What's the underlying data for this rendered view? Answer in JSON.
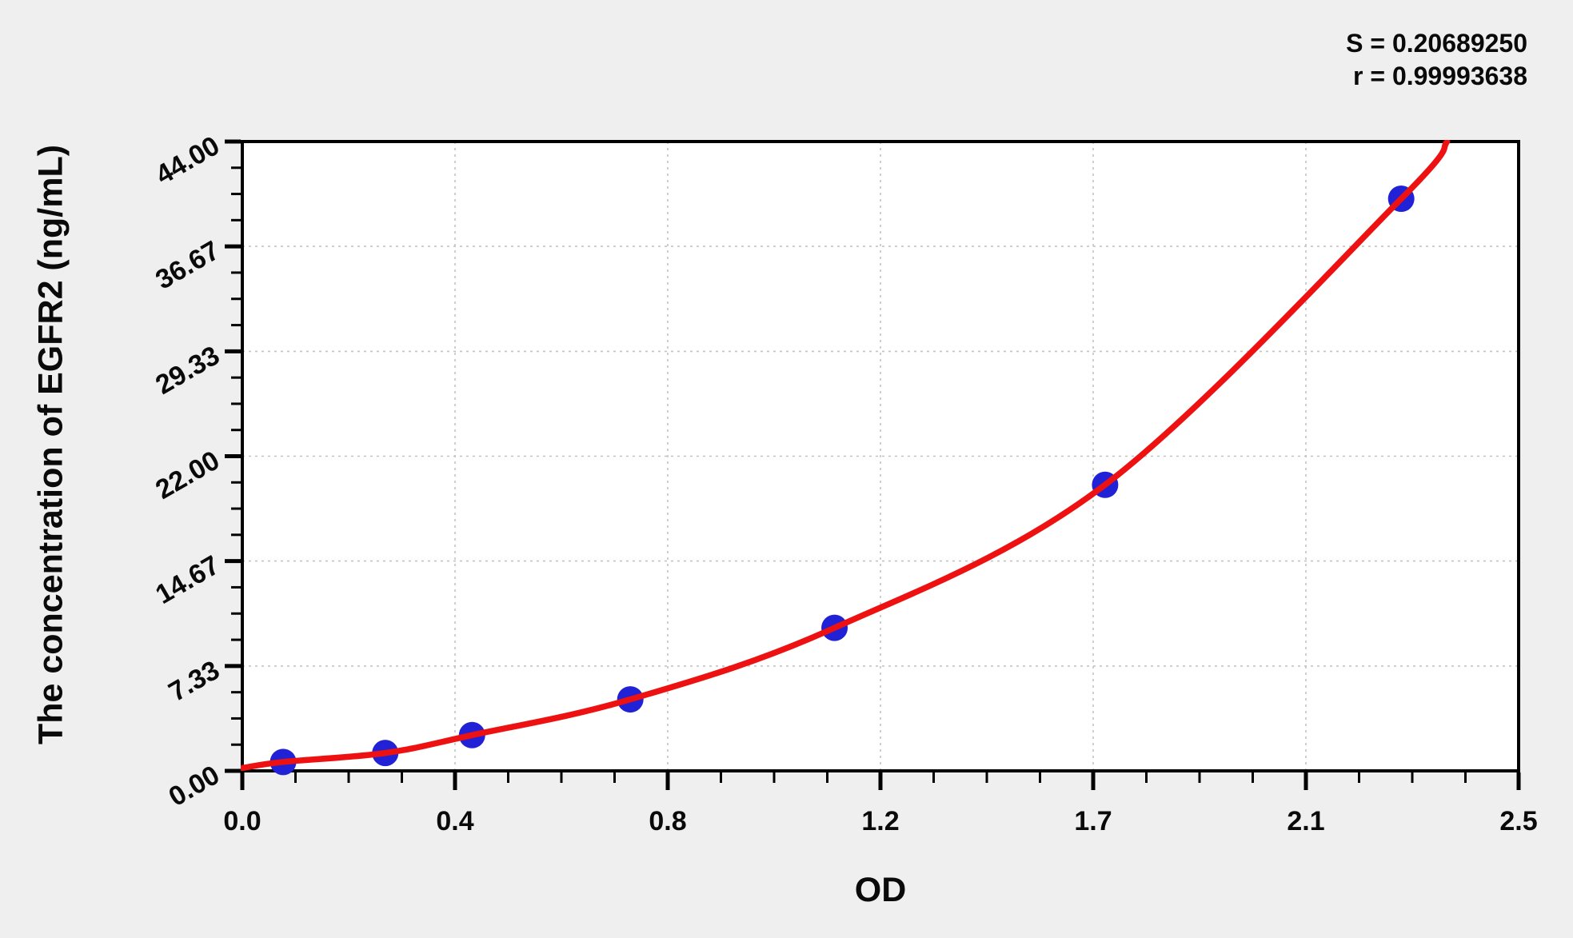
{
  "stats": {
    "s": "S = 0.20689250",
    "r": "r = 0.99993638"
  },
  "chart_data": {
    "type": "scatter",
    "title": "",
    "xlabel": "OD",
    "ylabel": "The concentration of EGFR2 (ng/mL)",
    "xlim": [
      0,
      2.5
    ],
    "ylim": [
      0,
      44
    ],
    "x_tick_values": [
      0,
      0.41667,
      0.83333,
      1.25,
      1.66667,
      2.08333,
      2.5
    ],
    "x_tick_labels": [
      "0.0",
      "0.4",
      "0.8",
      "1.2",
      "1.7",
      "2.1",
      "2.5"
    ],
    "y_tick_values": [
      0,
      7.33,
      14.67,
      22,
      29.33,
      36.67,
      44
    ],
    "y_tick_labels": [
      "0.00",
      "7.33",
      "14.67",
      "22.00",
      "29.33",
      "36.67",
      "44.00"
    ],
    "minor_ticks_per_interval": 3,
    "grid": "dashed-at-major-ticks",
    "legend_position": "none",
    "fit_stats": {
      "S": 0.2068925,
      "r": 0.99993638
    },
    "series": [
      {
        "name": "standard-points",
        "type": "scatter",
        "marker": "circle",
        "points": [
          {
            "od": 0.08,
            "concentration": 0.625
          },
          {
            "od": 0.28,
            "concentration": 1.25
          },
          {
            "od": 0.45,
            "concentration": 2.5
          },
          {
            "od": 0.76,
            "concentration": 5
          },
          {
            "od": 1.16,
            "concentration": 10
          },
          {
            "od": 1.69,
            "concentration": 20
          },
          {
            "od": 2.27,
            "concentration": 40
          }
        ]
      },
      {
        "name": "fitted-curve",
        "type": "line",
        "points": [
          {
            "od": 0,
            "concentration": 0.2
          },
          {
            "od": 0.08,
            "concentration": 0.625
          },
          {
            "od": 0.28,
            "concentration": 1.25
          },
          {
            "od": 0.45,
            "concentration": 2.5
          },
          {
            "od": 0.76,
            "concentration": 5
          },
          {
            "od": 1.16,
            "concentration": 10
          },
          {
            "od": 1.69,
            "concentration": 20
          },
          {
            "od": 2.27,
            "concentration": 40
          },
          {
            "od": 2.36,
            "concentration": 44
          }
        ]
      }
    ]
  },
  "colors": {
    "background": "#f0efef",
    "plot_background": "#ffffff",
    "curve": "#ee1111",
    "marker": "#2121d6",
    "grid": "#c3c3c3",
    "axis": "#000000"
  }
}
